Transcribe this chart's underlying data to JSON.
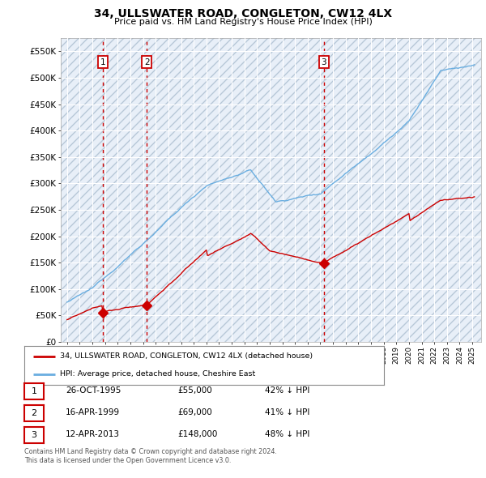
{
  "title": "34, ULLSWATER ROAD, CONGLETON, CW12 4LX",
  "subtitle": "Price paid vs. HM Land Registry's House Price Index (HPI)",
  "legend_label_red": "34, ULLSWATER ROAD, CONGLETON, CW12 4LX (detached house)",
  "legend_label_blue": "HPI: Average price, detached house, Cheshire East",
  "transactions": [
    {
      "date": 1995.82,
      "price": 55000,
      "label": "1"
    },
    {
      "date": 1999.29,
      "price": 69000,
      "label": "2"
    },
    {
      "date": 2013.28,
      "price": 148000,
      "label": "3"
    }
  ],
  "table_rows": [
    {
      "num": "1",
      "date": "26-OCT-1995",
      "price": "£55,000",
      "hpi": "42% ↓ HPI"
    },
    {
      "num": "2",
      "date": "16-APR-1999",
      "price": "£69,000",
      "hpi": "41% ↓ HPI"
    },
    {
      "num": "3",
      "date": "12-APR-2013",
      "price": "£148,000",
      "hpi": "48% ↓ HPI"
    }
  ],
  "footnote1": "Contains HM Land Registry data © Crown copyright and database right 2024.",
  "footnote2": "This data is licensed under the Open Government Licence v3.0.",
  "ylim": [
    0,
    575000
  ],
  "yticks": [
    0,
    50000,
    100000,
    150000,
    200000,
    250000,
    300000,
    350000,
    400000,
    450000,
    500000,
    550000
  ],
  "xlim_start": 1992.5,
  "xlim_end": 2025.7,
  "vline_dates": [
    1995.82,
    1999.29,
    2013.28
  ],
  "plot_bg_color": "#dce8f5",
  "hatch_bg_color": "#e8eff8",
  "grid_color": "#ffffff",
  "red_color": "#cc0000",
  "blue_color": "#6aaee0"
}
